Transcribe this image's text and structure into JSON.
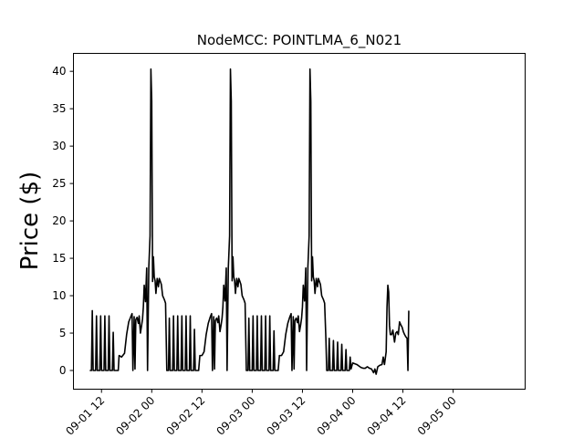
{
  "chart_data": {
    "type": "line",
    "title": "NodeMCC: POINTLMA_6_N021",
    "xlabel": "",
    "ylabel": "Price ($)",
    "x_unit": "hours since 2021-09-01 00",
    "xlim": [
      5.3,
      113.2
    ],
    "ylim": [
      -2.5,
      42.4
    ],
    "grid": false,
    "legend": "none",
    "line_color": "#000000",
    "xticks": [
      {
        "value": 12,
        "label": "09-01 12"
      },
      {
        "value": 24,
        "label": "09-02 00"
      },
      {
        "value": 36,
        "label": "09-02 12"
      },
      {
        "value": 48,
        "label": "09-03 00"
      },
      {
        "value": 60,
        "label": "09-03 12"
      },
      {
        "value": 72,
        "label": "09-04 00"
      },
      {
        "value": 84,
        "label": "09-04 12"
      },
      {
        "value": 96,
        "label": "09-05 00"
      }
    ],
    "yticks": [
      0,
      5,
      10,
      15,
      20,
      25,
      30,
      35,
      40
    ],
    "series": [
      {
        "name": "",
        "points": [
          [
            9.2,
            0
          ],
          [
            9.6,
            0
          ],
          [
            9.8,
            8
          ],
          [
            10.0,
            0
          ],
          [
            10.6,
            0
          ],
          [
            10.8,
            7.3
          ],
          [
            11.0,
            0
          ],
          [
            11.6,
            0
          ],
          [
            11.8,
            7.3
          ],
          [
            12.0,
            0
          ],
          [
            12.6,
            0
          ],
          [
            12.8,
            7.3
          ],
          [
            13.0,
            0
          ],
          [
            13.6,
            0
          ],
          [
            13.8,
            7.3
          ],
          [
            14.0,
            0
          ],
          [
            14.6,
            0
          ],
          [
            14.8,
            5.1
          ],
          [
            15.0,
            0
          ],
          [
            16.0,
            0
          ],
          [
            16.2,
            2
          ],
          [
            16.8,
            1.8
          ],
          [
            17.5,
            2.3
          ],
          [
            18.0,
            4.8
          ],
          [
            18.5,
            6.5
          ],
          [
            19.0,
            7.2
          ],
          [
            19.3,
            7.6
          ],
          [
            19.5,
            0
          ],
          [
            19.8,
            7.2
          ],
          [
            20.0,
            0.2
          ],
          [
            20.2,
            6.8
          ],
          [
            20.5,
            7.1
          ],
          [
            20.8,
            6.3
          ],
          [
            21.0,
            7.3
          ],
          [
            21.3,
            5
          ],
          [
            21.6,
            6.1
          ],
          [
            21.8,
            6.9
          ],
          [
            22.0,
            8.5
          ],
          [
            22.2,
            11.4
          ],
          [
            22.5,
            9.2
          ],
          [
            22.8,
            13.7
          ],
          [
            23.0,
            0
          ],
          [
            23.3,
            13.8
          ],
          [
            23.6,
            18
          ],
          [
            23.8,
            40.3
          ],
          [
            24.0,
            36
          ],
          [
            24.2,
            11.9
          ],
          [
            24.4,
            15.2
          ],
          [
            24.6,
            12.5
          ],
          [
            24.8,
            12
          ],
          [
            25.0,
            10.3
          ],
          [
            25.3,
            12.3
          ],
          [
            25.6,
            11.2
          ],
          [
            25.8,
            12.3
          ],
          [
            26.0,
            12
          ],
          [
            26.3,
            11.5
          ],
          [
            26.6,
            10
          ],
          [
            27.0,
            9.5
          ],
          [
            27.3,
            9
          ],
          [
            27.6,
            0
          ],
          [
            28.0,
            0
          ],
          [
            28.2,
            7
          ],
          [
            28.4,
            0
          ],
          [
            29.0,
            0
          ],
          [
            29.2,
            7.3
          ],
          [
            29.4,
            0
          ],
          [
            30.0,
            0
          ],
          [
            30.2,
            7.3
          ],
          [
            30.4,
            0
          ],
          [
            31.0,
            0
          ],
          [
            31.2,
            7.3
          ],
          [
            31.4,
            0
          ],
          [
            32.0,
            0
          ],
          [
            32.2,
            7.3
          ],
          [
            32.4,
            0
          ],
          [
            33.0,
            0
          ],
          [
            33.2,
            7.3
          ],
          [
            33.4,
            0
          ],
          [
            34.0,
            0
          ],
          [
            34.2,
            5.5
          ],
          [
            34.4,
            0
          ],
          [
            35.2,
            0
          ],
          [
            35.5,
            2
          ],
          [
            36.0,
            2
          ],
          [
            36.5,
            2.5
          ],
          [
            37.0,
            4.8
          ],
          [
            37.5,
            6.3
          ],
          [
            38.0,
            7.2
          ],
          [
            38.3,
            7.6
          ],
          [
            38.5,
            0
          ],
          [
            38.8,
            7.2
          ],
          [
            39.0,
            0.2
          ],
          [
            39.2,
            6.7
          ],
          [
            39.5,
            7
          ],
          [
            39.8,
            6.4
          ],
          [
            40.0,
            7.3
          ],
          [
            40.3,
            5.2
          ],
          [
            40.6,
            6.2
          ],
          [
            40.8,
            7
          ],
          [
            41.0,
            8.5
          ],
          [
            41.2,
            11.4
          ],
          [
            41.5,
            9.3
          ],
          [
            41.8,
            13.7
          ],
          [
            42.0,
            0
          ],
          [
            42.3,
            13.8
          ],
          [
            42.6,
            18
          ],
          [
            42.8,
            40.3
          ],
          [
            43.0,
            36
          ],
          [
            43.2,
            12
          ],
          [
            43.4,
            15.2
          ],
          [
            43.6,
            12.5
          ],
          [
            43.8,
            12
          ],
          [
            44.0,
            10.3
          ],
          [
            44.3,
            12.3
          ],
          [
            44.6,
            11.2
          ],
          [
            44.8,
            12.3
          ],
          [
            45.0,
            12
          ],
          [
            45.3,
            11.5
          ],
          [
            45.6,
            10
          ],
          [
            46.0,
            9.5
          ],
          [
            46.3,
            9
          ],
          [
            46.6,
            0
          ],
          [
            47.0,
            0
          ],
          [
            47.2,
            7
          ],
          [
            47.4,
            0
          ],
          [
            48.0,
            0
          ],
          [
            48.2,
            7.3
          ],
          [
            48.4,
            0
          ],
          [
            49.0,
            0
          ],
          [
            49.2,
            7.3
          ],
          [
            49.4,
            0
          ],
          [
            50.0,
            0
          ],
          [
            50.2,
            7.3
          ],
          [
            50.4,
            0
          ],
          [
            51.0,
            0
          ],
          [
            51.2,
            7.3
          ],
          [
            51.4,
            0
          ],
          [
            52.0,
            0
          ],
          [
            52.2,
            7.3
          ],
          [
            52.4,
            0
          ],
          [
            53.0,
            0
          ],
          [
            53.2,
            5.3
          ],
          [
            53.4,
            0
          ],
          [
            54.2,
            0
          ],
          [
            54.5,
            2
          ],
          [
            55.0,
            2
          ],
          [
            55.5,
            2.5
          ],
          [
            56.0,
            4.8
          ],
          [
            56.5,
            6.3
          ],
          [
            57.0,
            7.2
          ],
          [
            57.3,
            7.6
          ],
          [
            57.5,
            0
          ],
          [
            57.8,
            7.2
          ],
          [
            58.0,
            0.2
          ],
          [
            58.2,
            6.7
          ],
          [
            58.5,
            7
          ],
          [
            58.8,
            6.4
          ],
          [
            59.0,
            7.3
          ],
          [
            59.3,
            5.2
          ],
          [
            59.6,
            6.2
          ],
          [
            59.8,
            7
          ],
          [
            60.0,
            8.5
          ],
          [
            60.2,
            11.4
          ],
          [
            60.5,
            9.3
          ],
          [
            60.8,
            13.7
          ],
          [
            61.0,
            0
          ],
          [
            61.3,
            13.8
          ],
          [
            61.6,
            18
          ],
          [
            61.8,
            40.3
          ],
          [
            62.0,
            36
          ],
          [
            62.2,
            12
          ],
          [
            62.4,
            15.2
          ],
          [
            62.6,
            12.5
          ],
          [
            62.8,
            12
          ],
          [
            63.0,
            10.3
          ],
          [
            63.3,
            12.3
          ],
          [
            63.6,
            11.2
          ],
          [
            63.8,
            12.3
          ],
          [
            64.0,
            12
          ],
          [
            64.3,
            11.5
          ],
          [
            64.6,
            10
          ],
          [
            65.0,
            9.5
          ],
          [
            65.3,
            9
          ],
          [
            65.6,
            4.3
          ],
          [
            65.8,
            0
          ],
          [
            66.2,
            0
          ],
          [
            66.4,
            4.3
          ],
          [
            66.6,
            0
          ],
          [
            67.2,
            0
          ],
          [
            67.4,
            4
          ],
          [
            67.6,
            0
          ],
          [
            68.2,
            0
          ],
          [
            68.4,
            3.8
          ],
          [
            68.6,
            0
          ],
          [
            69.2,
            0
          ],
          [
            69.4,
            3.5
          ],
          [
            69.6,
            0
          ],
          [
            70.2,
            0
          ],
          [
            70.4,
            2.8
          ],
          [
            70.6,
            0
          ],
          [
            71.2,
            0
          ],
          [
            71.4,
            1.8
          ],
          [
            71.6,
            0.2
          ],
          [
            72.0,
            1
          ],
          [
            72.5,
            0.9
          ],
          [
            73.0,
            0.8
          ],
          [
            73.5,
            0.6
          ],
          [
            74.0,
            0.4
          ],
          [
            74.5,
            0.3
          ],
          [
            75.0,
            0.3
          ],
          [
            75.5,
            0.5
          ],
          [
            76.0,
            0.3
          ],
          [
            76.5,
            0.2
          ],
          [
            77.0,
            -0.3
          ],
          [
            77.3,
            0.2
          ],
          [
            77.6,
            -0.5
          ],
          [
            78.0,
            0.5
          ],
          [
            78.5,
            0.7
          ],
          [
            79.0,
            0.8
          ],
          [
            79.3,
            1.8
          ],
          [
            79.6,
            0.8
          ],
          [
            80.0,
            2.5
          ],
          [
            80.2,
            8.5
          ],
          [
            80.4,
            11.4
          ],
          [
            80.6,
            10.5
          ],
          [
            80.8,
            6
          ],
          [
            81.0,
            4.8
          ],
          [
            81.3,
            4.8
          ],
          [
            81.6,
            5.4
          ],
          [
            82.0,
            3.8
          ],
          [
            82.3,
            5
          ],
          [
            82.6,
            5.2
          ],
          [
            82.9,
            4.8
          ],
          [
            83.2,
            6.5
          ],
          [
            83.5,
            6.1
          ],
          [
            83.8,
            5.8
          ],
          [
            84.1,
            5.2
          ],
          [
            84.4,
            4.8
          ],
          [
            84.7,
            4.5
          ],
          [
            85.0,
            4.3
          ],
          [
            85.2,
            0
          ],
          [
            85.4,
            8
          ]
        ]
      }
    ]
  }
}
